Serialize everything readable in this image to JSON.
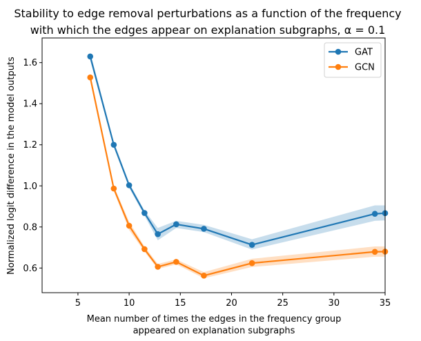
{
  "chart_data": {
    "type": "line",
    "title_line1": "Stability to edge removal perturbations as a function of the frequency",
    "title_line2": "with which the edges appear on explanation subgraphs, α = 0.1",
    "xlabel_line1": "Mean number of times the edges in the frequency group",
    "xlabel_line2": "appeared on explanation subgraphs",
    "ylabel": "Normalized logit difference in the model outputs",
    "xlim": [
      1.5,
      35
    ],
    "ylim": [
      0.48,
      1.72
    ],
    "xticks": [
      5,
      10,
      15,
      20,
      25,
      30,
      35
    ],
    "yticks": [
      0.6,
      0.8,
      1.0,
      1.2,
      1.4,
      1.6
    ],
    "legend_position": "upper right",
    "series": [
      {
        "name": "GAT",
        "color": "#1f77b4",
        "x": [
          6.2,
          8.5,
          10.0,
          11.5,
          12.8,
          14.6,
          17.3,
          22.0,
          34.0,
          35.0
        ],
        "y": [
          1.63,
          1.2,
          1.003,
          0.868,
          0.765,
          0.813,
          0.791,
          0.713,
          0.864,
          0.867
        ],
        "lower": [
          1.61,
          1.19,
          0.99,
          0.855,
          0.735,
          0.795,
          0.775,
          0.69,
          0.83,
          0.832
        ],
        "upper": [
          1.65,
          1.215,
          1.015,
          0.88,
          0.795,
          0.83,
          0.81,
          0.74,
          0.905,
          0.905
        ]
      },
      {
        "name": "GCN",
        "color": "#ff7f0e",
        "x": [
          6.2,
          8.5,
          10.0,
          11.5,
          12.8,
          14.6,
          17.3,
          22.0,
          34.0,
          35.0
        ],
        "y": [
          1.528,
          0.987,
          0.806,
          0.692,
          0.606,
          0.63,
          0.563,
          0.624,
          0.679,
          0.68
        ],
        "lower": [
          1.51,
          0.975,
          0.785,
          0.68,
          0.595,
          0.618,
          0.55,
          0.605,
          0.655,
          0.655
        ],
        "upper": [
          1.545,
          1.0,
          0.825,
          0.705,
          0.62,
          0.642,
          0.58,
          0.645,
          0.705,
          0.705
        ]
      }
    ]
  }
}
